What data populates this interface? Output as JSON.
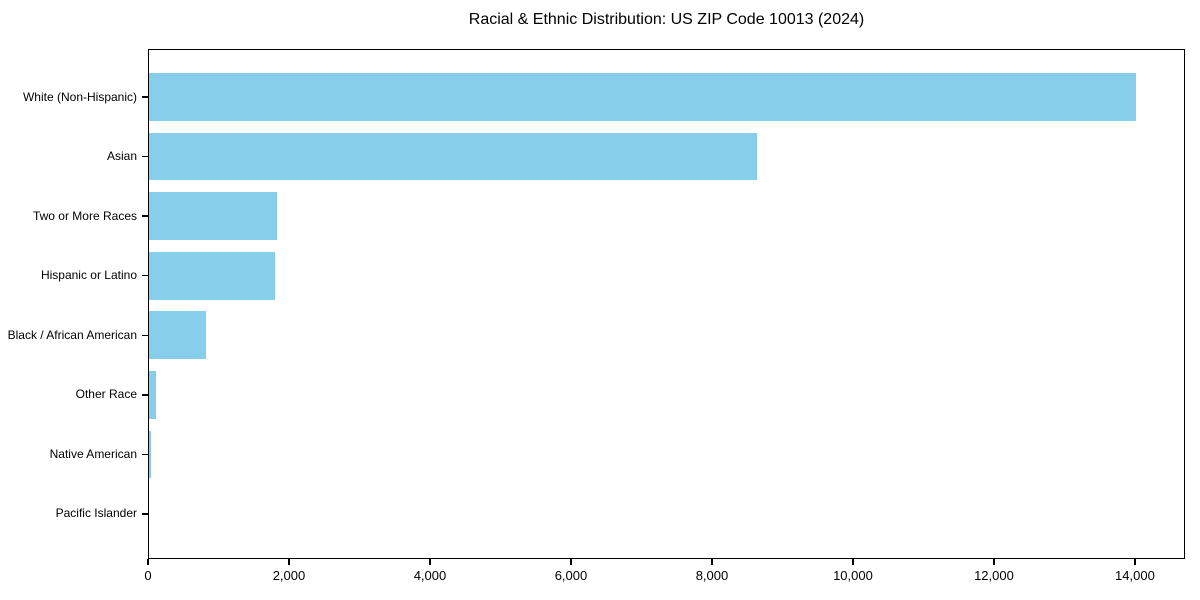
{
  "figure": {
    "background": "#ffffff"
  },
  "chart_data": {
    "type": "bar",
    "orientation": "horizontal",
    "title": "Racial & Ethnic Distribution: US ZIP Code 10013 (2024)",
    "categories": [
      "White (Non-Hispanic)",
      "Asian",
      "Two or More Races",
      "Hispanic or Latino",
      "Black / African American",
      "Other Race",
      "Native American",
      "Pacific Islander"
    ],
    "values": [
      14010,
      8640,
      1830,
      1800,
      820,
      120,
      45,
      0
    ],
    "bar_color": "#87CEEB",
    "axis_color": "#000000",
    "xlabel": "",
    "ylabel": "",
    "xlim": [
      0,
      14710
    ],
    "x_ticks": [
      0,
      2000,
      4000,
      6000,
      8000,
      10000,
      12000,
      14000
    ],
    "x_tick_labels": [
      "0",
      "2,000",
      "4,000",
      "6,000",
      "8,000",
      "10,000",
      "12,000",
      "14,000"
    ],
    "grid": false,
    "legend": null
  }
}
